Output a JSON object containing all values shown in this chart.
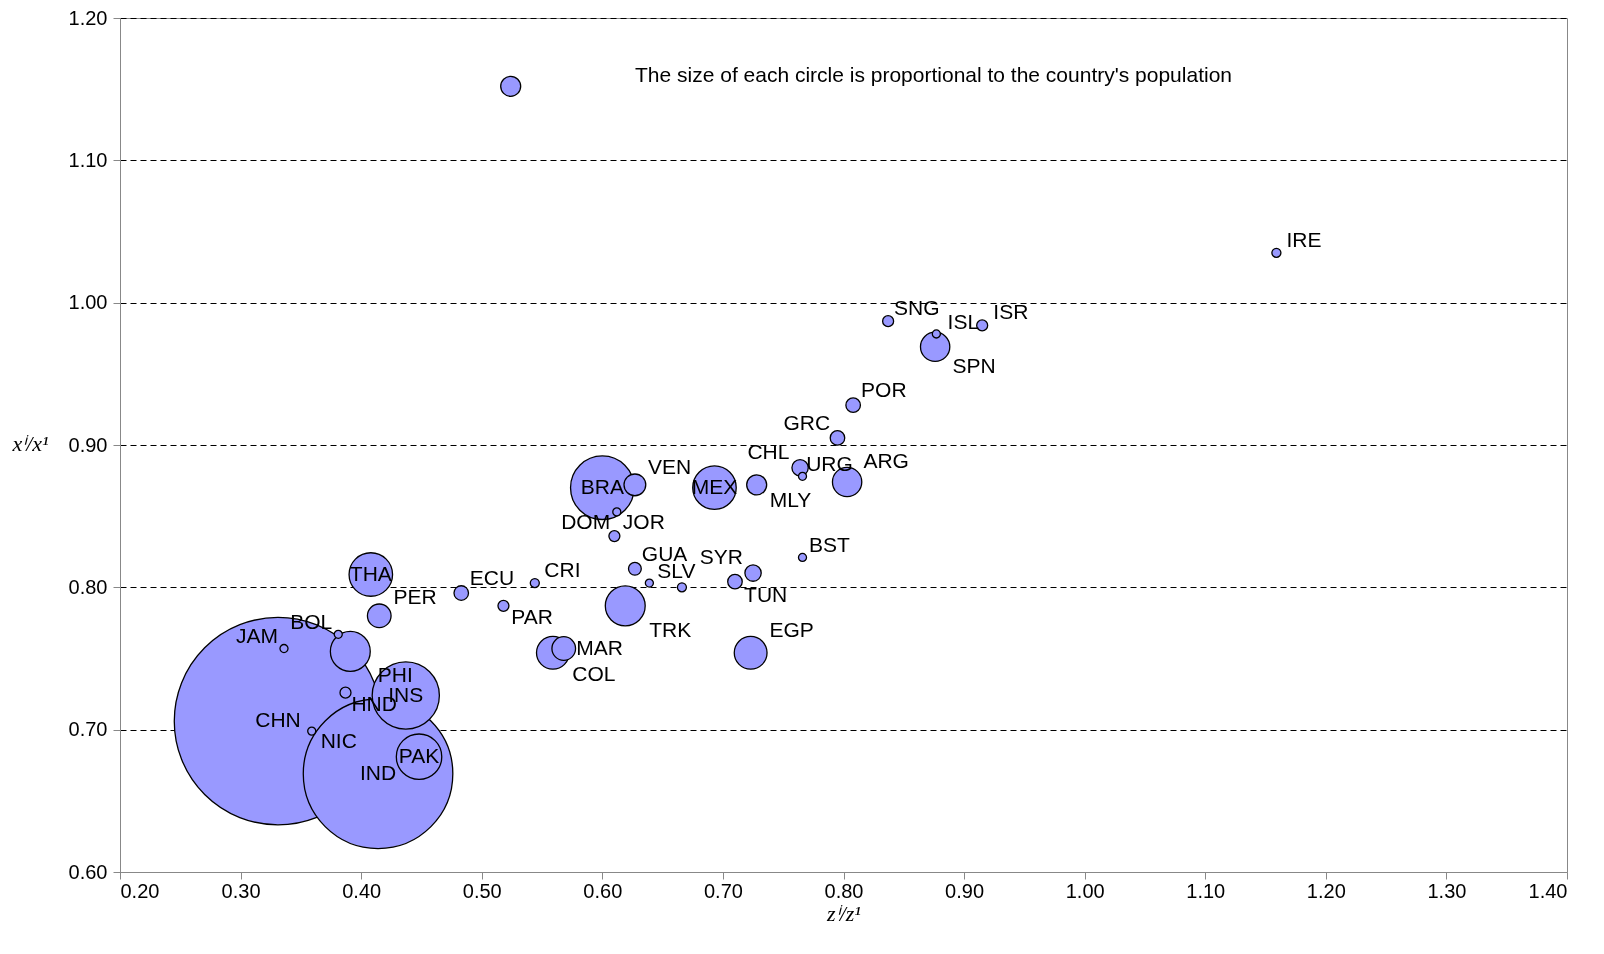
{
  "chart_data": {
    "type": "bubble",
    "xlabel": "zⁱ/z¹",
    "ylabel": "xⁱ/x¹",
    "xlim": [
      0.2,
      1.4
    ],
    "ylim": [
      0.6,
      1.2
    ],
    "xticks": [
      {
        "value": 0.2,
        "label": "0.20"
      },
      {
        "value": 0.3,
        "label": "0.30"
      },
      {
        "value": 0.4,
        "label": "0.40"
      },
      {
        "value": 0.5,
        "label": "0.50"
      },
      {
        "value": 0.6,
        "label": "0.60"
      },
      {
        "value": 0.7,
        "label": "0.70"
      },
      {
        "value": 0.8,
        "label": "0.80"
      },
      {
        "value": 0.9,
        "label": "0.90"
      },
      {
        "value": 1.0,
        "label": "1.00"
      },
      {
        "value": 1.1,
        "label": "1.10"
      },
      {
        "value": 1.2,
        "label": "1.20"
      },
      {
        "value": 1.3,
        "label": "1.30"
      },
      {
        "value": 1.4,
        "label": "1.40"
      }
    ],
    "yticks": [
      {
        "value": 0.6,
        "label": "0.60"
      },
      {
        "value": 0.7,
        "label": "0.70"
      },
      {
        "value": 0.8,
        "label": "0.80"
      },
      {
        "value": 0.9,
        "label": "0.90"
      },
      {
        "value": 1.0,
        "label": "1.00"
      },
      {
        "value": 1.1,
        "label": "1.10"
      },
      {
        "value": 1.2,
        "label": "1.20"
      }
    ],
    "grid": "y",
    "marker": "circle",
    "series": [
      {
        "color": "#9999ff",
        "x": [
          0.331,
          0.414,
          0.437,
          0.6,
          0.448,
          0.693,
          0.408,
          0.391,
          0.619,
          0.559,
          0.723,
          0.876,
          0.803,
          0.415,
          0.568,
          0.627,
          0.728,
          0.524,
          0.764,
          0.725,
          0.795,
          0.808,
          0.483,
          0.71,
          0.627,
          0.61,
          0.837,
          0.915,
          0.518,
          0.387,
          0.544,
          1.159,
          0.666,
          0.639,
          0.336,
          0.766,
          0.766,
          0.381,
          0.359,
          0.612,
          0.877
        ],
        "values": [
          0.706,
          0.669,
          0.724,
          0.87,
          0.681,
          0.87,
          0.809,
          0.755,
          0.787,
          0.754,
          0.754,
          0.969,
          0.874,
          0.78,
          0.757,
          0.872,
          0.872,
          1.152,
          0.884,
          0.81,
          0.905,
          0.928,
          0.796,
          0.804,
          0.813,
          0.836,
          0.987,
          0.984,
          0.787,
          0.726,
          0.803,
          1.035,
          0.8,
          0.803,
          0.757,
          0.878,
          0.821,
          0.767,
          0.699,
          0.853,
          0.978
        ],
        "sizes": [
          1,
          0.52,
          0.105,
          0.094,
          0.048,
          0.044,
          0.044,
          0.037,
          0.037,
          0.025,
          0.025,
          0.02,
          0.02,
          0.013,
          0.013,
          0.011,
          0.0093,
          0.0093,
          0.0062,
          0.0062,
          0.0049,
          0.0049,
          0.0049,
          0.0049,
          0.0038,
          0.0028,
          0.0028,
          0.0028,
          0.0028,
          0.0028,
          0.0019,
          0.0019,
          0.0019,
          0.0015,
          0.0015,
          0.0015,
          0.0015,
          0.0015,
          0.0015,
          0.0015,
          0.0015
        ]
      }
    ],
    "annotations": [
      "The size of each circle is proportional to the country's population",
      {
        "text": "IRE",
        "x": 1.159,
        "y": 1.035
      },
      {
        "text": "SNG",
        "x": 0.837,
        "y": 0.987
      },
      {
        "text": "ISL",
        "x": 0.877,
        "y": 0.978
      },
      {
        "text": "ISR",
        "x": 0.915,
        "y": 0.984
      },
      {
        "text": "SPN",
        "x": 0.876,
        "y": 0.969
      },
      {
        "text": "POR",
        "x": 0.808,
        "y": 0.928
      },
      {
        "text": "GRC",
        "x": 0.795,
        "y": 0.905
      },
      {
        "text": "CHL",
        "x": 0.764,
        "y": 0.884
      },
      {
        "text": "MLY",
        "x": 0.728,
        "y": 0.872
      },
      {
        "text": "VEN",
        "x": 0.627,
        "y": 0.872
      },
      {
        "text": "BRA",
        "x": 0.6,
        "y": 0.87
      },
      {
        "text": "MEX",
        "x": 0.693,
        "y": 0.87
      },
      {
        "text": "URG",
        "x": 0.766,
        "y": 0.878
      },
      {
        "text": "ARG",
        "x": 0.803,
        "y": 0.874
      },
      {
        "text": "JOR",
        "x": 0.612,
        "y": 0.853
      },
      {
        "text": "DOM",
        "x": 0.61,
        "y": 0.836
      },
      {
        "text": "THA",
        "x": 0.408,
        "y": 0.809
      },
      {
        "text": "ECU",
        "x": 0.483,
        "y": 0.796
      },
      {
        "text": "CRI",
        "x": 0.544,
        "y": 0.803
      },
      {
        "text": "GUA",
        "x": 0.627,
        "y": 0.813
      },
      {
        "text": "SYR",
        "x": 0.725,
        "y": 0.81
      },
      {
        "text": "BST",
        "x": 0.766,
        "y": 0.821
      },
      {
        "text": "SLV",
        "x": 0.639,
        "y": 0.803
      },
      {
        "text": "TUN",
        "x": 0.71,
        "y": 0.804
      },
      {
        "text": "TRK",
        "x": 0.619,
        "y": 0.787
      },
      {
        "text": "PER",
        "x": 0.415,
        "y": 0.78
      },
      {
        "text": "PAR",
        "x": 0.518,
        "y": 0.787
      },
      {
        "text": "BOL",
        "x": 0.381,
        "y": 0.767
      },
      {
        "text": "JAM",
        "x": 0.336,
        "y": 0.757
      },
      {
        "text": "PHI",
        "x": 0.391,
        "y": 0.755
      },
      {
        "text": "EGP",
        "x": 0.723,
        "y": 0.754
      },
      {
        "text": "COL",
        "x": 0.559,
        "y": 0.754
      },
      {
        "text": "MAR",
        "x": 0.568,
        "y": 0.757
      },
      {
        "text": "HND",
        "x": 0.387,
        "y": 0.726
      },
      {
        "text": "INS",
        "x": 0.437,
        "y": 0.724
      },
      {
        "text": "CHN",
        "x": 0.331,
        "y": 0.706
      },
      {
        "text": "NIC",
        "x": 0.359,
        "y": 0.699
      },
      {
        "text": "PAK",
        "x": 0.448,
        "y": 0.681
      },
      {
        "text": "IND",
        "x": 0.414,
        "y": 0.669
      }
    ]
  }
}
